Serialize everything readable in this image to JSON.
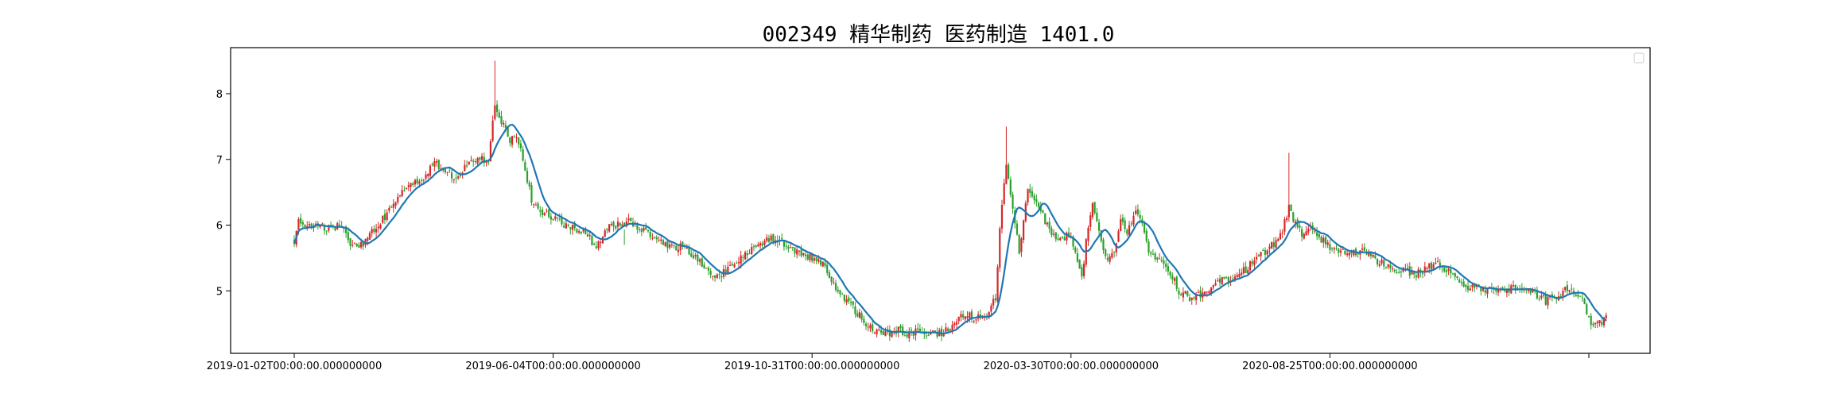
{
  "chart_data": {
    "type": "candlestick",
    "title": "002349 精华制药 医药制造 1401.0",
    "xlabel": "",
    "ylabel": "",
    "x_tick_labels": [
      "2019-01-02T00:00:00.000000000",
      "2019-06-04T00:00:00.000000000",
      "2019-10-31T00:00:00.000000000",
      "2020-03-30T00:00:00.000000000",
      "2020-08-25T00:00:00.000000000",
      ""
    ],
    "x_tick_index": [
      0,
      100,
      200,
      300,
      400,
      500
    ],
    "y_ticks": [
      5,
      6,
      7,
      8
    ],
    "ylim": [
      4.05,
      8.7
    ],
    "n_bars": 500,
    "legend": {
      "placement": "top-right",
      "entries": []
    },
    "grid": false,
    "colors": {
      "up": "#d62728",
      "down": "#2ca02c",
      "ma": "#1f77b4",
      "frame": "#000000"
    },
    "series": [
      {
        "type": "ohlc",
        "close_anchors": [
          [
            0,
            5.75
          ],
          [
            2,
            6.05
          ],
          [
            8,
            5.98
          ],
          [
            18,
            5.95
          ],
          [
            22,
            6.0
          ],
          [
            26,
            5.7
          ],
          [
            30,
            5.65
          ],
          [
            35,
            5.85
          ],
          [
            40,
            6.05
          ],
          [
            45,
            6.25
          ],
          [
            50,
            6.5
          ],
          [
            55,
            6.65
          ],
          [
            60,
            6.7
          ],
          [
            65,
            6.95
          ],
          [
            70,
            6.85
          ],
          [
            75,
            6.7
          ],
          [
            80,
            6.9
          ],
          [
            85,
            7.0
          ],
          [
            90,
            7.0
          ],
          [
            93,
            7.85
          ],
          [
            96,
            7.6
          ],
          [
            100,
            7.3
          ],
          [
            103,
            7.35
          ],
          [
            106,
            7.0
          ],
          [
            110,
            6.4
          ],
          [
            115,
            6.2
          ],
          [
            120,
            6.1
          ],
          [
            125,
            6.0
          ],
          [
            130,
            5.95
          ],
          [
            135,
            5.9
          ],
          [
            140,
            5.65
          ],
          [
            145,
            5.95
          ],
          [
            150,
            6.0
          ],
          [
            155,
            6.05
          ],
          [
            160,
            5.95
          ],
          [
            165,
            5.85
          ],
          [
            170,
            5.75
          ],
          [
            175,
            5.65
          ],
          [
            180,
            5.7
          ],
          [
            185,
            5.55
          ],
          [
            190,
            5.35
          ],
          [
            195,
            5.2
          ],
          [
            200,
            5.3
          ],
          [
            205,
            5.4
          ],
          [
            210,
            5.6
          ],
          [
            215,
            5.7
          ],
          [
            220,
            5.8
          ],
          [
            225,
            5.75
          ],
          [
            230,
            5.65
          ],
          [
            235,
            5.55
          ],
          [
            240,
            5.5
          ],
          [
            245,
            5.4
          ],
          [
            250,
            5.1
          ],
          [
            255,
            4.9
          ],
          [
            260,
            4.7
          ],
          [
            265,
            4.5
          ],
          [
            270,
            4.4
          ],
          [
            275,
            4.35
          ],
          [
            280,
            4.4
          ],
          [
            285,
            4.35
          ],
          [
            290,
            4.4
          ],
          [
            295,
            4.35
          ],
          [
            300,
            4.35
          ],
          [
            305,
            4.5
          ],
          [
            310,
            4.65
          ],
          [
            315,
            4.6
          ],
          [
            320,
            4.6
          ],
          [
            325,
            4.9
          ],
          [
            327,
            5.9
          ],
          [
            330,
            6.95
          ],
          [
            333,
            6.2
          ],
          [
            336,
            5.6
          ],
          [
            340,
            6.55
          ],
          [
            345,
            6.3
          ],
          [
            350,
            5.9
          ],
          [
            355,
            5.8
          ],
          [
            360,
            5.85
          ],
          [
            363,
            5.5
          ],
          [
            365,
            5.2
          ],
          [
            368,
            6.0
          ],
          [
            370,
            6.3
          ],
          [
            373,
            5.9
          ],
          [
            376,
            5.5
          ],
          [
            380,
            5.6
          ],
          [
            383,
            6.1
          ],
          [
            386,
            5.9
          ],
          [
            390,
            6.2
          ],
          [
            393,
            6.05
          ],
          [
            396,
            5.6
          ],
          [
            400,
            5.5
          ],
          [
            405,
            5.35
          ],
          [
            410,
            5.0
          ],
          [
            415,
            4.9
          ],
          [
            420,
            4.95
          ],
          [
            425,
            5.05
          ],
          [
            430,
            5.15
          ],
          [
            435,
            5.2
          ],
          [
            440,
            5.3
          ],
          [
            445,
            5.45
          ],
          [
            450,
            5.6
          ],
          [
            455,
            5.75
          ],
          [
            458,
            5.9
          ],
          [
            461,
            6.3
          ],
          [
            464,
            6.0
          ],
          [
            467,
            5.85
          ],
          [
            470,
            6.0
          ],
          [
            473,
            5.9
          ],
          [
            477,
            5.75
          ],
          [
            481,
            5.65
          ],
          [
            485,
            5.6
          ],
          [
            490,
            5.55
          ],
          [
            495,
            5.6
          ],
          [
            500,
            5.5
          ],
          [
            505,
            5.4
          ],
          [
            510,
            5.3
          ],
          [
            515,
            5.3
          ],
          [
            520,
            5.25
          ],
          [
            525,
            5.35
          ],
          [
            530,
            5.4
          ],
          [
            535,
            5.3
          ],
          [
            540,
            5.15
          ],
          [
            545,
            5.05
          ],
          [
            550,
            5.05
          ],
          [
            555,
            5.0
          ],
          [
            560,
            5.0
          ],
          [
            565,
            5.05
          ],
          [
            570,
            5.0
          ],
          [
            575,
            4.95
          ],
          [
            580,
            4.85
          ],
          [
            585,
            4.9
          ],
          [
            590,
            5.05
          ],
          [
            595,
            4.95
          ],
          [
            598,
            4.8
          ],
          [
            601,
            4.45
          ],
          [
            604,
            4.5
          ],
          [
            608,
            4.58
          ]
        ],
        "spikes": [
          [
            93,
            8.5
          ],
          [
            153,
            5.7
          ],
          [
            330,
            7.5
          ],
          [
            461,
            7.1
          ]
        ]
      },
      {
        "type": "moving-average",
        "window": 10
      }
    ]
  }
}
